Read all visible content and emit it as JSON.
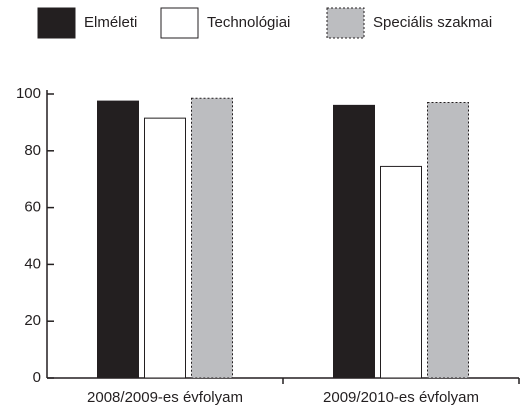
{
  "chart_data": {
    "type": "bar",
    "categories": [
      "2008/2009-es évfolyam",
      "2009/2010-es évfolyam"
    ],
    "series": [
      {
        "name": "Elméleti",
        "color": "#231f20",
        "values": [
          97.5,
          96
        ]
      },
      {
        "name": "Technológiai",
        "color": "#ffffff",
        "values": [
          91.5,
          74.5
        ]
      },
      {
        "name": "Speciális szakmai",
        "color": "#bcbdc0",
        "values": [
          98.5,
          97
        ]
      }
    ],
    "ylim": [
      0,
      100
    ],
    "yticks": [
      0,
      20,
      40,
      60,
      80,
      100
    ],
    "legend": "top"
  }
}
